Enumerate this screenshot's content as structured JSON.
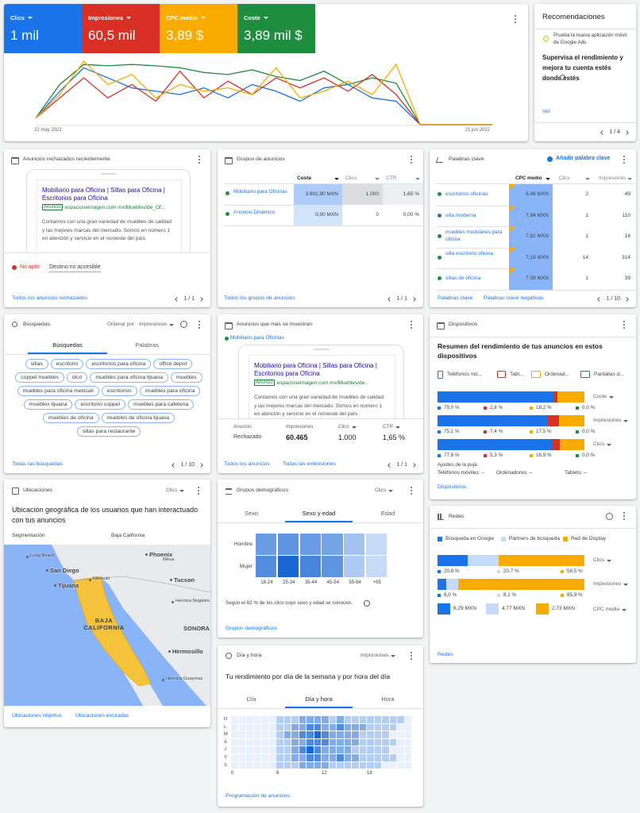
{
  "summary": {
    "metrics": [
      {
        "label": "Clics",
        "value": "1 mil",
        "color": "#1a73e8",
        "trend": [
          10,
          50,
          85,
          70,
          55,
          50,
          45,
          55,
          40,
          60,
          50,
          35,
          55,
          60,
          40,
          35,
          0,
          0,
          0,
          0
        ]
      },
      {
        "label": "Impresiones",
        "value": "60,5 mil",
        "color": "#d93025",
        "trend": [
          10,
          40,
          70,
          40,
          60,
          35,
          80,
          40,
          65,
          45,
          70,
          55,
          70,
          50,
          75,
          45,
          0,
          0,
          0,
          0
        ]
      },
      {
        "label": "CPC medio",
        "value": "3,89 $",
        "color": "#f9ab00",
        "trend": [
          10,
          45,
          95,
          60,
          75,
          40,
          60,
          50,
          55,
          45,
          85,
          40,
          50,
          65,
          45,
          90,
          0,
          0,
          0,
          0
        ]
      },
      {
        "label": "Coste",
        "value": "3,89 mil $",
        "color": "#1e8e3e",
        "trend": [
          10,
          60,
          90,
          88,
          90,
          88,
          85,
          78,
          75,
          82,
          72,
          66,
          80,
          60,
          70,
          62,
          0,
          0,
          0,
          0
        ]
      }
    ],
    "date_start": "22 may 2022",
    "date_end": "21 jun 2022"
  },
  "recommendations": {
    "title": "Recomendaciones",
    "tip": "Prueba la nueva aplicación móvil de Google Ads",
    "headline": "Supervisa el rendimiento y mejora tu cuenta estés donde estés",
    "link": "Ver",
    "pager": "1 / 4"
  },
  "rejected_ads": {
    "title": "Anuncios rechazados recientemente",
    "ad": {
      "headline": "Mobiliario para Oficina | Sillas para Oficina | Escritorios para Oficina",
      "badge": "Anuncio",
      "url": "espaciosеimagen.com.mx/Muebles/de_Of...",
      "description": "Contamos con una gran variedad de muebles de calidad y las mejores marcas del mercado. Somos en número 1 en atención y servicio en el noroeste del país"
    },
    "status": "No apto:",
    "reason": "Destino no accesible",
    "link": "Todos los anuncios rechazados",
    "pager": "1 / 1"
  },
  "ad_groups": {
    "title": "Grupos de anuncios",
    "headers": [
      "Coste",
      "Clics",
      "CTR"
    ],
    "rows": [
      [
        "Mobiliario para Oficinas",
        "3.891,90 MXN",
        "1.000",
        "1,65 %"
      ],
      [
        "Anuncio Dinámico",
        "0,00 MXN",
        "0",
        "0,00 %"
      ]
    ],
    "link": "Todos los grupos de anuncios",
    "pager": "1 / 1"
  },
  "keywords": {
    "title": "Palabras clave",
    "action": "Añadir palabra clave",
    "headers": [
      "CPC medio",
      "Clics",
      "Impresiones"
    ],
    "rows": [
      [
        "escritorios oficinas",
        "8,46 MXN",
        "2",
        "49"
      ],
      [
        "silla moderna",
        "7,84 MXN",
        "1",
        "110"
      ],
      [
        "muebles modulares para oficina",
        "7,81 MXN",
        "1",
        "18"
      ],
      [
        "silla escritorio oficina",
        "7,19 MXN",
        "14",
        "314"
      ],
      [
        "sillas de oficina",
        "7,09 MXN",
        "1",
        "39"
      ]
    ],
    "links": [
      "Palabras clave",
      "Palabras clave negativas"
    ],
    "pager": "1 / 10"
  },
  "searches": {
    "title": "Búsquedas",
    "sort_label": "Ordenar por:",
    "sort_value": "Impresiones",
    "tabs": [
      "Búsquedas",
      "Palabras"
    ],
    "terms": [
      "sillas",
      "escritorio",
      "escritorios para oficina",
      "office depot",
      "coppel muebles",
      "dico",
      "muebles para oficina tijuana",
      "muebles",
      "muebles para oficina mexicali",
      "escritorios",
      "muebles para oficina",
      "mueblex tijuana",
      "escritorio coppel",
      "muebles para cafeteria",
      "muebles de oficina",
      "muebles de oficina tijuana",
      "sillas para restaurante"
    ],
    "link": "Todas las búsquedas",
    "pager": "1 / 10"
  },
  "top_ads": {
    "title": "Anuncios que más se muestran",
    "group": "Mobiliario para Oficinas",
    "ad": {
      "headline": "Mobiliario para Oficina | Sillas para Oficina | Escritorios para Oficina",
      "badge": "Anuncio",
      "url": "espaciosеimagen.com.mx/Muebles/de...",
      "description": "Contamos con una gran variedad de muebles de calidad y las mejores marcas del mercado. Somos en número 1 en atención y servicio en el noroeste del país"
    },
    "stat_headers": [
      "Anuncio",
      "Impresiones",
      "Clics",
      "CTR"
    ],
    "stat_values": [
      "Rechazado",
      "60.465",
      "1.000",
      "1,65 %"
    ],
    "links": [
      "Todos los anuncios",
      "Todas las extensiones"
    ],
    "pager": "1 / 1"
  },
  "devices": {
    "title": "Dispositivos",
    "heading": "Resumen del rendimiento de tus anuncios en estos dispositivos",
    "series": [
      {
        "name": "Teléfonos mó...",
        "color": "#1a73e8"
      },
      {
        "name": "Tabl...",
        "color": "#d93025"
      },
      {
        "name": "Ordenad...",
        "color": "#f9ab00"
      },
      {
        "name": "Pantallas d...",
        "color": "#1e8e3e"
      }
    ],
    "metrics": [
      {
        "name": "Coste",
        "values": [
          79.0,
          2.8,
          18.2,
          0.0
        ],
        "value_labels": [
          "79,0 %",
          "2,8 %",
          "18,2 %",
          "0,0 %"
        ]
      },
      {
        "name": "Impresiones",
        "values": [
          75.1,
          7.4,
          17.5,
          0.0
        ],
        "value_labels": [
          "75,1 %",
          "7,4 %",
          "17,5 %",
          "0,0 %"
        ]
      },
      {
        "name": "Clics",
        "values": [
          77.8,
          5.3,
          16.9,
          0.0
        ],
        "value_labels": [
          "77,8 %",
          "5,3 %",
          "16,9 %",
          "0,0 %"
        ]
      }
    ],
    "bid_title": "Ajustes de la puja",
    "bids": [
      "Teléfonos móviles: –",
      "Ordenadores: –",
      "Tablets: –"
    ],
    "link": "Dispositivos"
  },
  "locations": {
    "title": "Ubicaciones",
    "metric": "Clics",
    "heading": "Ubicación geográfica de los usuarios que han interactuado con tus anuncios",
    "segment_label": "Segmentación",
    "segment_value": "Baja California",
    "map_labels": [
      "Phoenix",
      "Mesa",
      "Long Beach",
      "San Diego",
      "Tijuana",
      "Mexicali",
      "Tucson",
      "BAJA CALIFORNIA",
      "Heroica Nogales",
      "SONORA",
      "Hermosillo",
      "Heroica Guaymas"
    ],
    "links": [
      "Ubicaciones objetivo",
      "Ubicaciones excluidas"
    ]
  },
  "demographics": {
    "title": "Grupos demográficos",
    "metric": "Clics",
    "tabs": [
      "Sexo",
      "Sexo y edad",
      "Edad"
    ],
    "rows": [
      "Hombre",
      "Mujer"
    ],
    "columns": [
      "18-24",
      "25-34",
      "35-44",
      "45-54",
      "55-64",
      "+65"
    ],
    "cells": [
      [
        55,
        60,
        55,
        50,
        30,
        15
      ],
      [
        65,
        90,
        70,
        60,
        25,
        15
      ]
    ],
    "note": "Según el 62 % de los clics cuyo sexo y edad se conocen.",
    "link": "Grupos demográficos"
  },
  "schedule": {
    "title": "Día y hora",
    "metric": "Impresiones",
    "heading": "Tu rendimiento por día de la semana y por hora del día",
    "tabs": [
      "Día",
      "Día y hora",
      "Hora"
    ],
    "rows": [
      "D",
      "L",
      "M",
      "X",
      "J",
      "V",
      "S"
    ],
    "cells": [
      [
        0,
        0,
        0,
        0,
        0,
        0,
        1,
        1,
        1,
        2,
        2,
        2,
        2,
        1,
        2,
        1,
        1,
        1,
        1,
        1,
        1,
        1,
        1,
        0
      ],
      [
        0,
        0,
        0,
        0,
        0,
        0,
        1,
        1,
        2,
        2,
        3,
        3,
        2,
        2,
        3,
        2,
        2,
        2,
        1,
        1,
        1,
        1,
        0,
        0
      ],
      [
        0,
        0,
        0,
        0,
        0,
        0,
        1,
        2,
        2,
        3,
        3,
        4,
        3,
        2,
        2,
        2,
        2,
        1,
        1,
        1,
        1,
        0,
        0,
        0
      ],
      [
        0,
        0,
        0,
        0,
        0,
        0,
        1,
        1,
        2,
        2,
        3,
        3,
        3,
        2,
        2,
        2,
        2,
        1,
        1,
        1,
        1,
        1,
        0,
        0
      ],
      [
        0,
        0,
        0,
        0,
        0,
        0,
        1,
        1,
        2,
        3,
        4,
        3,
        2,
        2,
        2,
        2,
        1,
        1,
        1,
        1,
        1,
        0,
        0,
        0
      ],
      [
        0,
        0,
        0,
        0,
        0,
        0,
        1,
        1,
        2,
        2,
        3,
        3,
        2,
        2,
        3,
        2,
        2,
        1,
        1,
        1,
        1,
        1,
        0,
        0
      ],
      [
        0,
        0,
        0,
        0,
        0,
        0,
        1,
        1,
        1,
        2,
        2,
        2,
        2,
        1,
        1,
        1,
        1,
        1,
        1,
        1,
        0,
        0,
        0,
        0
      ]
    ],
    "xticks": [
      0,
      6,
      12,
      18
    ],
    "link": "Programación de anuncios"
  },
  "networks": {
    "title": "Redes",
    "series": [
      {
        "name": "Búsqueda en Google",
        "color": "#1a73e8"
      },
      {
        "name": "Partners de búsqueda",
        "color": "#c6dafc"
      },
      {
        "name": "Red de Display",
        "color": "#f9ab00"
      }
    ],
    "metrics": [
      {
        "name": "Clics",
        "values": [
          20.8,
          20.7,
          58.5
        ],
        "value_labels": [
          "20,8 %",
          "20,7 %",
          "58,5 %"
        ]
      },
      {
        "name": "Impresiones",
        "values": [
          6.0,
          8.1,
          85.9
        ],
        "value_labels": [
          "6,0 %",
          "8,1 %",
          "85,9 %"
        ]
      }
    ],
    "cpc_name": "CPC medio",
    "cpc_labels": [
      "6,29 MXN",
      "4,77 MXN",
      "2,73 MXN"
    ],
    "link": "Redes"
  }
}
